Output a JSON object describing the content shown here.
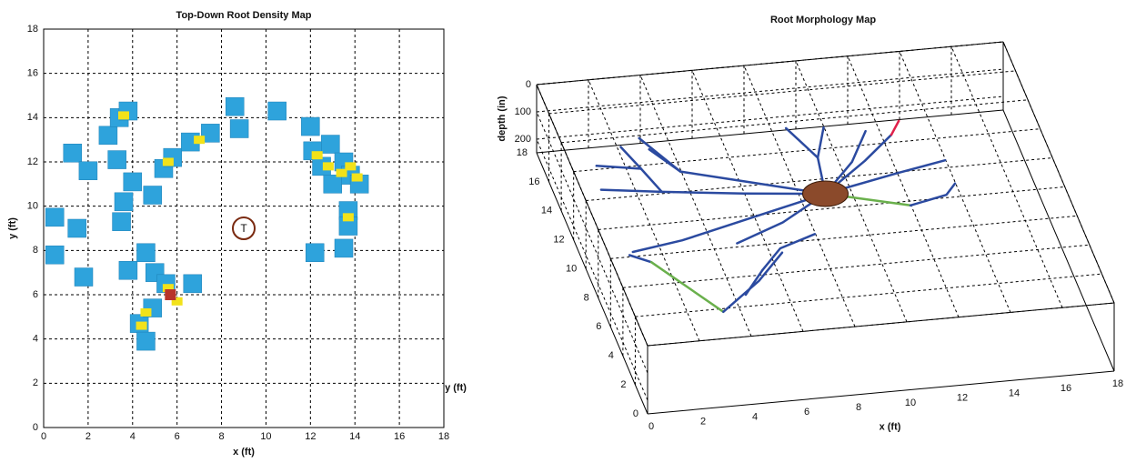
{
  "chart_data": [
    {
      "type": "square_scatter",
      "title": "Top-Down Root Density Map",
      "xlabel": "x (ft)",
      "ylabel": "y (ft)",
      "xlim": [
        0,
        18
      ],
      "ylim": [
        0,
        18
      ],
      "xticks": [
        0,
        2,
        4,
        6,
        8,
        10,
        12,
        14,
        16,
        18
      ],
      "yticks": [
        0,
        2,
        4,
        6,
        8,
        10,
        12,
        14,
        16,
        18
      ],
      "grid": true,
      "series": [
        {
          "color": "#2ea3dc",
          "x": [
            0.5,
            0.5,
            1.3,
            1.5,
            1.8,
            2.0,
            2.9,
            3.3,
            3.4,
            3.8,
            3.6,
            3.5,
            3.8,
            4.0,
            4.6,
            4.9,
            5.0,
            4.3,
            4.6,
            4.9,
            5.4,
            5.8,
            5.5,
            6.7,
            6.6,
            7.5,
            8.6,
            8.8,
            10.5,
            12.0,
            12.1,
            12.5,
            12.9,
            13.5,
            13.0,
            13.8,
            14.2,
            13.7,
            13.7,
            12.2,
            13.5
          ],
          "y": [
            9.5,
            7.8,
            12.4,
            9.0,
            6.8,
            11.6,
            13.2,
            12.1,
            14.0,
            14.3,
            10.2,
            9.3,
            7.1,
            11.1,
            7.9,
            10.5,
            7.0,
            4.7,
            3.9,
            5.4,
            11.7,
            12.2,
            6.5,
            6.5,
            12.9,
            13.3,
            14.5,
            13.5,
            14.3,
            13.6,
            12.5,
            11.8,
            12.8,
            12.0,
            11.0,
            11.4,
            11.0,
            9.8,
            9.1,
            7.9,
            8.1
          ]
        },
        {
          "color": "#f2e21a",
          "x": [
            3.6,
            5.6,
            7.0,
            4.6,
            4.4,
            5.6,
            12.3,
            12.8,
            13.4,
            13.8,
            14.1,
            13.7,
            6.0
          ],
          "y": [
            14.1,
            12.0,
            13.0,
            5.2,
            4.6,
            6.3,
            12.3,
            11.8,
            11.5,
            11.8,
            11.3,
            9.5,
            5.7
          ]
        },
        {
          "color": "#b8332a",
          "x": [
            5.7
          ],
          "y": [
            6.0
          ]
        }
      ],
      "annotation": {
        "text": "T",
        "x": 9,
        "y": 9,
        "color": "#7a2a10"
      }
    },
    {
      "type": "root3d",
      "title": "Root Morphology Map",
      "xlabel": "x (ft)",
      "ylabel": "y (ft)",
      "zlabel": "depth (in)",
      "xlim": [
        0,
        18
      ],
      "ylim": [
        0,
        18
      ],
      "zlim": [
        0,
        250
      ],
      "xticks": [
        0,
        2,
        4,
        6,
        8,
        10,
        12,
        14,
        16,
        18
      ],
      "yticks": [
        0,
        2,
        4,
        6,
        8,
        10,
        12,
        14,
        16,
        18
      ],
      "zticks": [
        0,
        100,
        200
      ],
      "grid": true,
      "trunk": {
        "x": 9,
        "y": 9,
        "z": 0,
        "color": "#8b4a2b"
      },
      "series": [
        {
          "color": "#2b4aa0",
          "x": [
            9,
            6,
            3,
            0.8
          ],
          "y": [
            9,
            9.6,
            10.3,
            10.9
          ],
          "z": [
            0,
            5,
            10,
            15
          ]
        },
        {
          "color": "#2b4aa0",
          "x": [
            3,
            2.6,
            2.2
          ],
          "y": [
            10.3,
            12,
            13.6
          ],
          "z": [
            10,
            12,
            14
          ]
        },
        {
          "color": "#2b4aa0",
          "x": [
            2.6,
            1
          ],
          "y": [
            12,
            12.5
          ],
          "z": [
            12,
            14
          ]
        },
        {
          "color": "#2b4aa0",
          "x": [
            9,
            6,
            3,
            1
          ],
          "y": [
            9,
            8,
            7,
            6.6
          ],
          "z": [
            0,
            6,
            12,
            16
          ]
        },
        {
          "color": "#2b4aa0",
          "x": [
            9,
            7,
            5
          ],
          "y": [
            9,
            7.5,
            6.5
          ],
          "z": [
            0,
            8,
            14
          ]
        },
        {
          "color": "#2b4aa0",
          "x": [
            0.8,
            1.5
          ],
          "y": [
            6.3,
            5.7
          ],
          "z": [
            10,
            10
          ]
        },
        {
          "color": "#6ab04c",
          "x": [
            1.5,
            3.4
          ],
          "y": [
            5.7,
            2
          ],
          "z": [
            10,
            12
          ]
        },
        {
          "color": "#2b4aa0",
          "x": [
            3.4,
            5.2,
            6.5
          ],
          "y": [
            2,
            3.8,
            5.5
          ],
          "z": [
            12,
            10,
            8
          ]
        },
        {
          "color": "#2b4aa0",
          "x": [
            5.5,
            6.5,
            8
          ],
          "y": [
            4.5,
            5.8,
            6.5
          ],
          "z": [
            10,
            8,
            6
          ]
        },
        {
          "color": "#2b4aa0",
          "x": [
            4.5,
            5.5
          ],
          "y": [
            3,
            4.5
          ],
          "z": [
            12,
            10
          ]
        },
        {
          "color": "#6ab04c",
          "x": [
            9,
            12
          ],
          "y": [
            9,
            7.8
          ],
          "z": [
            0,
            5
          ]
        },
        {
          "color": "#2b4aa0",
          "x": [
            12,
            13.5,
            14
          ],
          "y": [
            7.8,
            8.3,
            9
          ],
          "z": [
            5,
            6,
            6
          ]
        },
        {
          "color": "#2b4aa0",
          "x": [
            9,
            12,
            14
          ],
          "y": [
            9,
            10,
            10.6
          ],
          "z": [
            0,
            4,
            6
          ]
        },
        {
          "color": "#2b4aa0",
          "x": [
            9,
            11,
            12.4
          ],
          "y": [
            9,
            11,
            12.6
          ],
          "z": [
            0,
            3,
            5
          ]
        },
        {
          "color": "#e0204a",
          "x": [
            12.4,
            12.9
          ],
          "y": [
            12.6,
            13.5
          ],
          "z": [
            5,
            6
          ]
        },
        {
          "color": "#2b4aa0",
          "x": [
            9,
            10.5,
            11.5
          ],
          "y": [
            9,
            11,
            13
          ],
          "z": [
            0,
            3,
            5
          ]
        },
        {
          "color": "#2b4aa0",
          "x": [
            9,
            9.3,
            8.6
          ],
          "y": [
            9,
            11.5,
            13.7
          ],
          "z": [
            0,
            3,
            6
          ]
        },
        {
          "color": "#2b4aa0",
          "x": [
            9.3,
            10
          ],
          "y": [
            11.5,
            13.5
          ],
          "z": [
            3,
            5
          ]
        },
        {
          "color": "#2b4aa0",
          "x": [
            9,
            6,
            4,
            3.2
          ],
          "y": [
            9,
            10.5,
            11.5,
            13.2
          ],
          "z": [
            0,
            5,
            8,
            10
          ]
        },
        {
          "color": "#2b4aa0",
          "x": [
            4,
            3
          ],
          "y": [
            11.5,
            14
          ],
          "z": [
            8,
            10
          ]
        }
      ]
    }
  ]
}
